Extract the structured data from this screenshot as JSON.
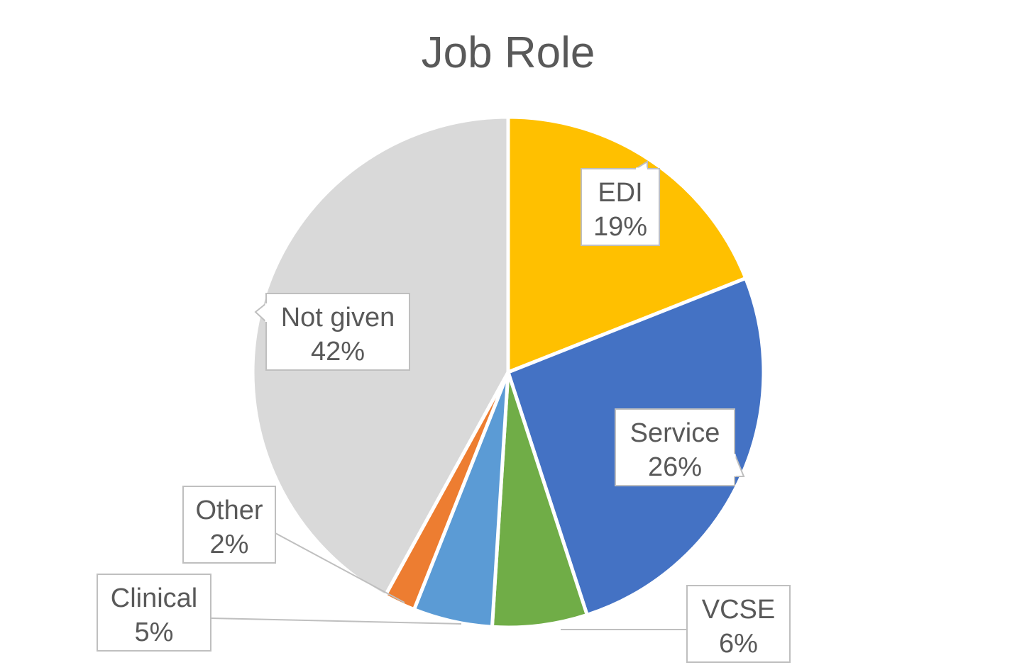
{
  "chart_data": {
    "type": "pie",
    "title": "Job Role",
    "start_angle_deg": 0,
    "direction": "clockwise",
    "slices": [
      {
        "label": "EDI",
        "value": 19,
        "value_text": "19%",
        "color": "#FFC000"
      },
      {
        "label": "Service",
        "value": 26,
        "value_text": "26%",
        "color": "#4472C4"
      },
      {
        "label": "VCSE",
        "value": 6,
        "value_text": "6%",
        "color": "#70AD47"
      },
      {
        "label": "Clinical",
        "value": 5,
        "value_text": "5%",
        "color": "#5B9BD5"
      },
      {
        "label": "Other",
        "value": 2,
        "value_text": "2%",
        "color": "#ED7D31"
      },
      {
        "label": "Not given",
        "value": 42,
        "value_text": "42%",
        "color": "#D9D9D9"
      }
    ],
    "data_labels": "callouts",
    "legend": "none"
  }
}
